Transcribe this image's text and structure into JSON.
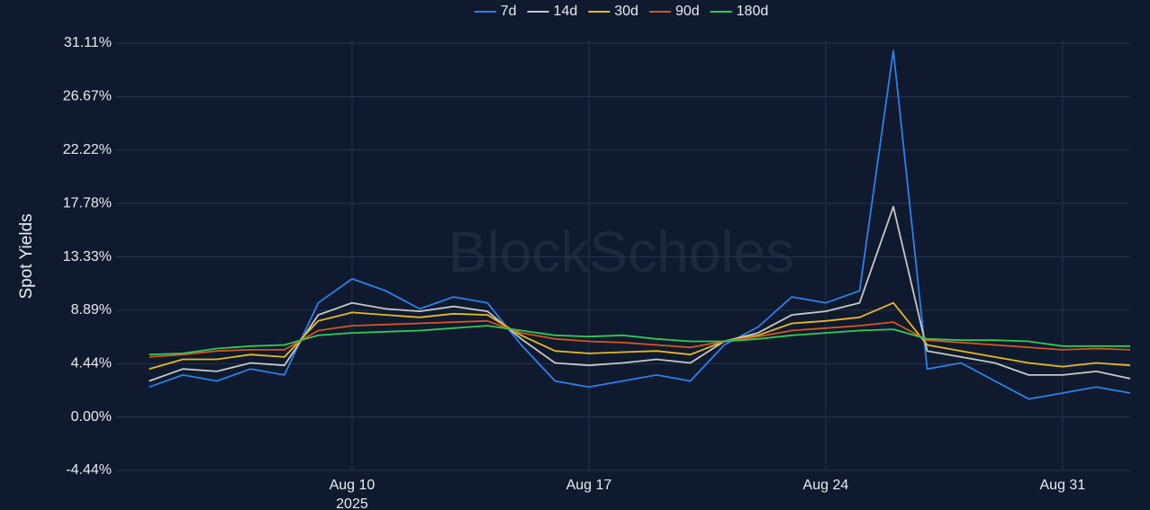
{
  "chart_data": {
    "type": "line",
    "watermark": "BlockScholes",
    "y_label": "Spot Yields",
    "x": [
      "2025-08-04",
      "2025-08-05",
      "2025-08-06",
      "2025-08-07",
      "2025-08-08",
      "2025-08-09",
      "2025-08-10",
      "2025-08-11",
      "2025-08-12",
      "2025-08-13",
      "2025-08-14",
      "2025-08-15",
      "2025-08-16",
      "2025-08-17",
      "2025-08-18",
      "2025-08-19",
      "2025-08-20",
      "2025-08-21",
      "2025-08-22",
      "2025-08-23",
      "2025-08-24",
      "2025-08-25",
      "2025-08-26",
      "2025-08-27",
      "2025-08-28",
      "2025-08-29",
      "2025-08-30",
      "2025-08-31",
      "2025-09-01",
      "2025-09-02"
    ],
    "series": [
      {
        "name": "7d",
        "color": "#2f7fe8",
        "values": [
          2.5,
          3.5,
          3.0,
          4.0,
          3.5,
          9.5,
          11.5,
          10.5,
          9.0,
          10.0,
          9.5,
          6.0,
          3.0,
          2.5,
          3.0,
          3.5,
          3.0,
          6.0,
          7.5,
          10.0,
          9.5,
          10.5,
          30.5,
          4.0,
          4.5,
          3.0,
          1.5,
          2.0,
          2.5,
          2.0
        ]
      },
      {
        "name": "14d",
        "color": "#c8c8c8",
        "values": [
          3.0,
          4.0,
          3.8,
          4.5,
          4.3,
          8.5,
          9.5,
          9.0,
          8.8,
          9.2,
          8.8,
          6.5,
          4.5,
          4.3,
          4.5,
          4.8,
          4.5,
          6.3,
          7.0,
          8.5,
          8.8,
          9.5,
          17.5,
          5.5,
          5.0,
          4.5,
          3.5,
          3.5,
          3.8,
          3.2
        ]
      },
      {
        "name": "30d",
        "color": "#e8b820",
        "values": [
          4.0,
          4.8,
          4.8,
          5.2,
          5.0,
          8.0,
          8.7,
          8.5,
          8.3,
          8.6,
          8.5,
          6.8,
          5.5,
          5.3,
          5.4,
          5.5,
          5.2,
          6.3,
          6.8,
          7.8,
          8.0,
          8.3,
          9.5,
          6.0,
          5.5,
          5.0,
          4.5,
          4.2,
          4.5,
          4.3
        ]
      },
      {
        "name": "90d",
        "color": "#d2571e",
        "values": [
          5.0,
          5.2,
          5.5,
          5.6,
          5.6,
          7.2,
          7.6,
          7.7,
          7.8,
          7.9,
          8.0,
          7.0,
          6.5,
          6.3,
          6.2,
          6.0,
          5.8,
          6.3,
          6.7,
          7.2,
          7.4,
          7.6,
          7.9,
          6.4,
          6.2,
          6.0,
          5.8,
          5.6,
          5.7,
          5.6
        ]
      },
      {
        "name": "180d",
        "color": "#2ecc55",
        "values": [
          5.2,
          5.3,
          5.7,
          5.9,
          6.0,
          6.8,
          7.0,
          7.1,
          7.2,
          7.4,
          7.6,
          7.2,
          6.8,
          6.7,
          6.8,
          6.5,
          6.3,
          6.3,
          6.5,
          6.8,
          7.0,
          7.2,
          7.3,
          6.5,
          6.4,
          6.4,
          6.3,
          5.9,
          5.9,
          5.9
        ]
      }
    ],
    "xlim": [
      "2025-08-03",
      "2025-09-02"
    ],
    "xticks": [
      {
        "value": "2025-08-10",
        "label": "Aug 10"
      },
      {
        "value": "2025-08-17",
        "label": "Aug 17"
      },
      {
        "value": "2025-08-24",
        "label": "Aug 24"
      },
      {
        "value": "2025-08-31",
        "label": "Aug 31"
      }
    ],
    "x_year_label": "2025",
    "ylim": [
      -4.44,
      31.11
    ],
    "yticks": [
      {
        "value": -4.44,
        "label": "-4.44%"
      },
      {
        "value": 0,
        "label": "0.00%"
      },
      {
        "value": 4.44,
        "label": "4.44%"
      },
      {
        "value": 8.89,
        "label": "8.89%"
      },
      {
        "value": 13.33,
        "label": "13.33%"
      },
      {
        "value": 17.78,
        "label": "17.78%"
      },
      {
        "value": 22.22,
        "label": "22.22%"
      },
      {
        "value": 26.67,
        "label": "26.67%"
      },
      {
        "value": 31.11,
        "label": "31.11%"
      }
    ],
    "grid": true,
    "legend": "top"
  }
}
